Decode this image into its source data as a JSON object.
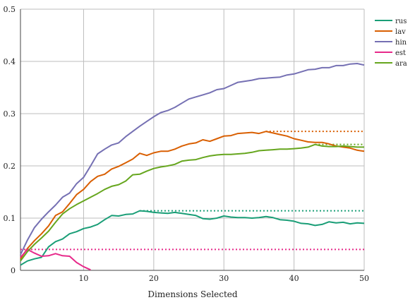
{
  "chart_data": {
    "type": "line",
    "title": "",
    "xlabel": "Dimensions Selected",
    "ylabel": "",
    "xlim": [
      1,
      50
    ],
    "ylim": [
      0,
      0.5
    ],
    "xticks": [
      10,
      20,
      30,
      40,
      50
    ],
    "yticks": [
      0,
      0.1,
      0.2,
      0.3,
      0.4,
      0.5
    ],
    "x_tick_labels": [
      "10",
      "20",
      "30",
      "40",
      "50"
    ],
    "y_tick_labels": [
      "0",
      "0.1",
      "0.2",
      "0.3",
      "0.4",
      "0.5"
    ],
    "grid": true,
    "legend_position": "right",
    "series": [
      {
        "name": "rus",
        "color": "#1a9e77",
        "x": [
          1,
          2,
          3,
          4,
          5,
          6,
          7,
          8,
          9,
          10,
          11,
          12,
          13,
          14,
          15,
          16,
          17,
          18,
          19,
          20,
          21,
          22,
          23,
          24,
          25,
          26,
          27,
          28,
          29,
          30,
          31,
          32,
          33,
          34,
          35,
          36,
          37,
          38,
          39,
          40,
          41,
          42,
          43,
          44,
          45,
          46,
          47,
          48,
          49,
          50
        ],
        "y": [
          0.01,
          0.018,
          0.022,
          0.025,
          0.045,
          0.055,
          0.06,
          0.07,
          0.074,
          0.08,
          0.083,
          0.088,
          0.097,
          0.105,
          0.104,
          0.107,
          0.108,
          0.114,
          0.113,
          0.111,
          0.11,
          0.109,
          0.111,
          0.109,
          0.107,
          0.105,
          0.099,
          0.098,
          0.1,
          0.104,
          0.102,
          0.101,
          0.101,
          0.1,
          0.101,
          0.103,
          0.101,
          0.097,
          0.096,
          0.094,
          0.09,
          0.089,
          0.086,
          0.088,
          0.093,
          0.091,
          0.092,
          0.089,
          0.091,
          0.09
        ],
        "reference": 0.114
      },
      {
        "name": "lav",
        "color": "#d95f02",
        "x": [
          1,
          2,
          3,
          4,
          5,
          6,
          7,
          8,
          9,
          10,
          11,
          12,
          13,
          14,
          15,
          16,
          17,
          18,
          19,
          20,
          21,
          22,
          23,
          24,
          25,
          26,
          27,
          28,
          29,
          30,
          31,
          32,
          33,
          34,
          35,
          36,
          37,
          38,
          39,
          40,
          41,
          42,
          43,
          44,
          45,
          46,
          47,
          48,
          49,
          50
        ],
        "y": [
          0.022,
          0.042,
          0.057,
          0.07,
          0.085,
          0.105,
          0.112,
          0.128,
          0.145,
          0.155,
          0.17,
          0.18,
          0.184,
          0.194,
          0.199,
          0.206,
          0.213,
          0.224,
          0.22,
          0.225,
          0.228,
          0.228,
          0.232,
          0.238,
          0.242,
          0.244,
          0.25,
          0.247,
          0.252,
          0.257,
          0.258,
          0.262,
          0.263,
          0.264,
          0.262,
          0.266,
          0.263,
          0.26,
          0.257,
          0.252,
          0.249,
          0.246,
          0.245,
          0.245,
          0.242,
          0.238,
          0.236,
          0.234,
          0.23,
          0.228
        ],
        "reference": 0.266
      },
      {
        "name": "hin",
        "color": "#7570b3",
        "x": [
          1,
          2,
          3,
          4,
          5,
          6,
          7,
          8,
          9,
          10,
          11,
          12,
          13,
          14,
          15,
          16,
          17,
          18,
          19,
          20,
          21,
          22,
          23,
          24,
          25,
          26,
          27,
          28,
          29,
          30,
          31,
          32,
          33,
          34,
          35,
          36,
          37,
          38,
          39,
          40,
          41,
          42,
          43,
          44,
          45,
          46,
          47,
          48,
          49,
          50
        ],
        "y": [
          0.03,
          0.058,
          0.082,
          0.098,
          0.112,
          0.125,
          0.14,
          0.148,
          0.166,
          0.178,
          0.2,
          0.223,
          0.232,
          0.24,
          0.244,
          0.256,
          0.266,
          0.276,
          0.285,
          0.294,
          0.302,
          0.306,
          0.312,
          0.32,
          0.328,
          0.332,
          0.336,
          0.34,
          0.346,
          0.348,
          0.354,
          0.36,
          0.362,
          0.364,
          0.367,
          0.368,
          0.369,
          0.37,
          0.374,
          0.376,
          0.38,
          0.384,
          0.385,
          0.388,
          0.388,
          0.392,
          0.392,
          0.395,
          0.396,
          0.393
        ],
        "reference": null
      },
      {
        "name": "est",
        "color": "#e7298a",
        "x": [
          1,
          2,
          3,
          4,
          5,
          6,
          7,
          8,
          9,
          10,
          11
        ],
        "y": [
          0.025,
          0.04,
          0.033,
          0.027,
          0.028,
          0.032,
          0.028,
          0.027,
          0.015,
          0.007,
          0.001
        ],
        "reference": 0.04
      },
      {
        "name": "ara",
        "color": "#66a61e",
        "x": [
          1,
          2,
          3,
          4,
          5,
          6,
          7,
          8,
          9,
          10,
          11,
          12,
          13,
          14,
          15,
          16,
          17,
          18,
          19,
          20,
          21,
          22,
          23,
          24,
          25,
          26,
          27,
          28,
          29,
          30,
          31,
          32,
          33,
          34,
          35,
          36,
          37,
          38,
          39,
          40,
          41,
          42,
          43,
          44,
          45,
          46,
          47,
          48,
          49,
          50
        ],
        "y": [
          0.018,
          0.036,
          0.05,
          0.062,
          0.075,
          0.092,
          0.108,
          0.118,
          0.126,
          0.133,
          0.14,
          0.147,
          0.155,
          0.161,
          0.164,
          0.171,
          0.183,
          0.184,
          0.19,
          0.195,
          0.198,
          0.2,
          0.203,
          0.209,
          0.211,
          0.212,
          0.216,
          0.219,
          0.221,
          0.222,
          0.222,
          0.223,
          0.224,
          0.226,
          0.229,
          0.23,
          0.231,
          0.232,
          0.232,
          0.233,
          0.234,
          0.236,
          0.241,
          0.238,
          0.237,
          0.237,
          0.238,
          0.237,
          0.236,
          0.236
        ],
        "reference": 0.241
      }
    ]
  }
}
